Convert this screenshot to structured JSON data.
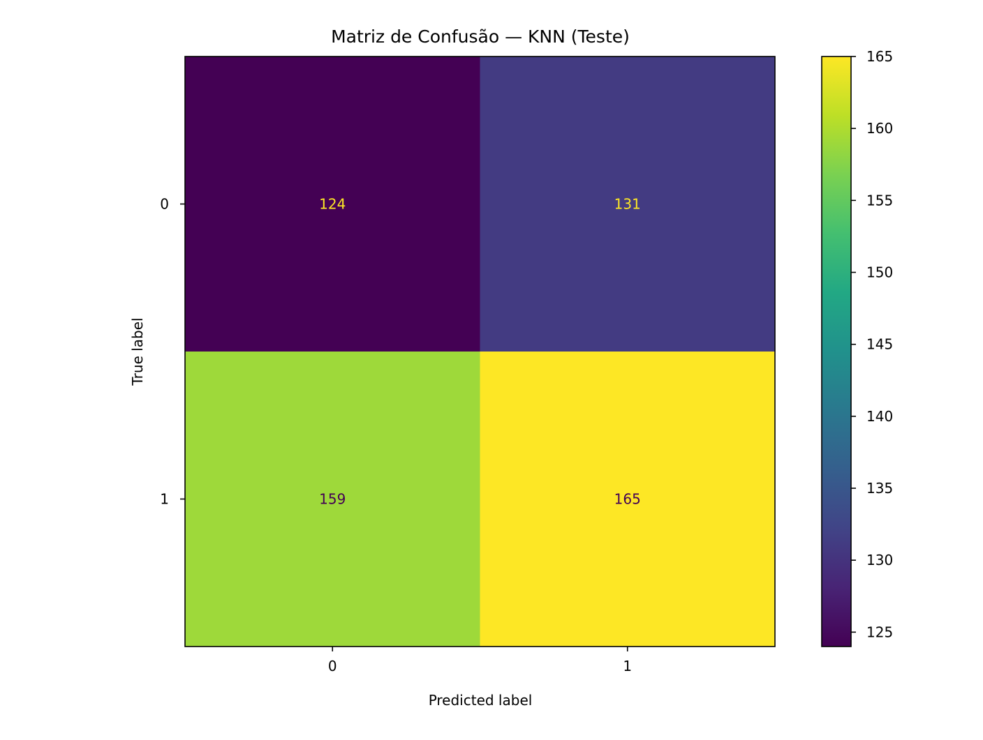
{
  "chart_data": {
    "type": "heatmap",
    "title": "Matriz de Confusão — KNN (Teste)",
    "xlabel": "Predicted label",
    "ylabel": "True label",
    "x_categories": [
      "0",
      "1"
    ],
    "y_categories": [
      "0",
      "1"
    ],
    "values": [
      [
        124,
        131
      ],
      [
        159,
        165
      ]
    ],
    "colormap": "viridis",
    "colorbar": {
      "range": [
        124,
        165
      ],
      "ticks": [
        125,
        130,
        135,
        140,
        145,
        150,
        155,
        160,
        165
      ],
      "tick_labels": [
        "125",
        "130",
        "135",
        "140",
        "145",
        "150",
        "155",
        "160",
        "165"
      ]
    },
    "cell_text_colors": {
      "dark_cell": "#fde725",
      "light_cell": "#440154"
    },
    "grid": false
  }
}
